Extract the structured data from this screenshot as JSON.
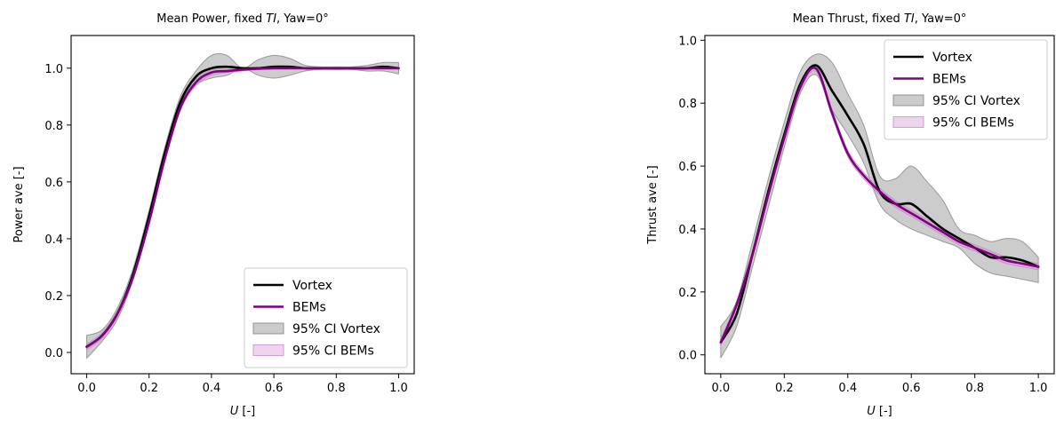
{
  "chart_data": [
    {
      "type": "line",
      "title": "Mean Power, fixed TI, Yaw=0°",
      "title_parts": [
        "Mean Power, fixed ",
        "TI",
        ", Yaw=0°"
      ],
      "xlabel_italic": "U",
      "xlabel_rest": " [-]",
      "ylabel": "Power ave [-]",
      "xlim": [
        -0.05,
        1.05
      ],
      "ylim": [
        -0.075,
        1.115
      ],
      "xticks": [
        0.0,
        0.2,
        0.4,
        0.6,
        0.8,
        1.0
      ],
      "xtick_labels": [
        "0.0",
        "0.2",
        "0.4",
        "0.6",
        "0.8",
        "1.0"
      ],
      "yticks": [
        0.0,
        0.2,
        0.4,
        0.6,
        0.8,
        1.0
      ],
      "ytick_labels": [
        "0.0",
        "0.2",
        "0.4",
        "0.6",
        "0.8",
        "1.0"
      ],
      "legend_position": "lower-right",
      "legend": [
        "Vortex",
        "BEMs",
        "95% CI Vortex",
        "95% CI BEMs"
      ],
      "series": [
        {
          "name": "Vortex",
          "color": "#000000",
          "x": [
            0.0,
            0.05,
            0.1,
            0.15,
            0.2,
            0.25,
            0.3,
            0.35,
            0.4,
            0.45,
            0.5,
            0.55,
            0.6,
            0.65,
            0.7,
            0.75,
            0.8,
            0.85,
            0.9,
            0.95,
            1.0
          ],
          "y": [
            0.02,
            0.06,
            0.14,
            0.28,
            0.48,
            0.7,
            0.88,
            0.97,
            1.0,
            1.005,
            1.0,
            1.0,
            1.005,
            1.005,
            1.0,
            1.0,
            1.0,
            1.0,
            1.0,
            1.005,
            1.0
          ]
        },
        {
          "name": "BEMs",
          "color": "#800080",
          "x": [
            0.0,
            0.05,
            0.1,
            0.15,
            0.2,
            0.25,
            0.3,
            0.35,
            0.4,
            0.45,
            0.5,
            0.55,
            0.6,
            0.65,
            0.7,
            0.75,
            0.8,
            0.85,
            0.9,
            0.95,
            1.0
          ],
          "y": [
            0.02,
            0.06,
            0.14,
            0.27,
            0.46,
            0.68,
            0.86,
            0.95,
            0.985,
            0.99,
            0.995,
            0.998,
            1.0,
            1.0,
            1.0,
            1.0,
            1.0,
            1.0,
            1.0,
            1.0,
            1.0
          ]
        }
      ],
      "bands": [
        {
          "name": "95% CI Vortex",
          "color": "#808080",
          "x": [
            0.0,
            0.05,
            0.1,
            0.15,
            0.2,
            0.25,
            0.3,
            0.35,
            0.4,
            0.45,
            0.5,
            0.55,
            0.6,
            0.65,
            0.7,
            0.75,
            0.8,
            0.85,
            0.9,
            0.95,
            1.0
          ],
          "lower": [
            -0.02,
            0.04,
            0.12,
            0.26,
            0.46,
            0.68,
            0.86,
            0.94,
            0.965,
            0.975,
            1.0,
            0.975,
            0.965,
            0.975,
            0.99,
            0.995,
            0.995,
            0.995,
            0.99,
            0.99,
            0.98
          ],
          "upper": [
            0.06,
            0.08,
            0.16,
            0.3,
            0.5,
            0.72,
            0.9,
            0.99,
            1.045,
            1.045,
            1.0,
            1.03,
            1.045,
            1.035,
            1.01,
            1.005,
            1.005,
            1.005,
            1.01,
            1.02,
            1.02
          ]
        },
        {
          "name": "95% CI BEMs",
          "color": "#cc88cc",
          "x": [
            0.0,
            0.05,
            0.1,
            0.15,
            0.2,
            0.25,
            0.3,
            0.35,
            0.4,
            0.45,
            0.5,
            0.55,
            0.6,
            0.65,
            0.7,
            0.75,
            0.8,
            0.85,
            0.9,
            0.95,
            1.0
          ],
          "lower": [
            0.01,
            0.05,
            0.13,
            0.26,
            0.45,
            0.67,
            0.85,
            0.94,
            0.975,
            0.985,
            0.99,
            0.995,
            0.997,
            0.997,
            0.997,
            0.997,
            0.997,
            0.997,
            0.997,
            0.997,
            0.997
          ],
          "upper": [
            0.03,
            0.07,
            0.15,
            0.28,
            0.47,
            0.69,
            0.87,
            0.96,
            0.995,
            0.995,
            1.0,
            1.001,
            1.003,
            1.003,
            1.003,
            1.003,
            1.003,
            1.003,
            1.003,
            1.003,
            1.003
          ]
        }
      ]
    },
    {
      "type": "line",
      "title": "Mean Thrust, fixed TI, Yaw=0°",
      "title_parts": [
        "Mean Thrust, fixed ",
        "TI",
        ", Yaw=0°"
      ],
      "xlabel_italic": "U",
      "xlabel_rest": " [-]",
      "ylabel": "Thrust ave [-]",
      "xlim": [
        -0.05,
        1.05
      ],
      "ylim": [
        -0.06,
        1.015
      ],
      "xticks": [
        0.0,
        0.2,
        0.4,
        0.6,
        0.8,
        1.0
      ],
      "xtick_labels": [
        "0.0",
        "0.2",
        "0.4",
        "0.6",
        "0.8",
        "1.0"
      ],
      "yticks": [
        0.0,
        0.2,
        0.4,
        0.6,
        0.8,
        1.0
      ],
      "ytick_labels": [
        "0.0",
        "0.2",
        "0.4",
        "0.6",
        "0.8",
        "1.0"
      ],
      "legend_position": "upper-right",
      "legend": [
        "Vortex",
        "BEMs",
        "95% CI Vortex",
        "95% CI BEMs"
      ],
      "series": [
        {
          "name": "Vortex",
          "color": "#000000",
          "x": [
            0.0,
            0.05,
            0.1,
            0.15,
            0.2,
            0.25,
            0.3,
            0.35,
            0.4,
            0.45,
            0.5,
            0.55,
            0.6,
            0.65,
            0.7,
            0.75,
            0.8,
            0.85,
            0.9,
            0.95,
            1.0
          ],
          "y": [
            0.04,
            0.13,
            0.32,
            0.52,
            0.7,
            0.86,
            0.92,
            0.84,
            0.76,
            0.67,
            0.52,
            0.48,
            0.48,
            0.44,
            0.4,
            0.37,
            0.34,
            0.31,
            0.31,
            0.3,
            0.28
          ]
        },
        {
          "name": "BEMs",
          "color": "#800080",
          "x": [
            0.0,
            0.05,
            0.1,
            0.15,
            0.2,
            0.25,
            0.3,
            0.35,
            0.4,
            0.45,
            0.5,
            0.55,
            0.6,
            0.65,
            0.7,
            0.75,
            0.8,
            0.85,
            0.9,
            0.95,
            1.0
          ],
          "y": [
            0.04,
            0.16,
            0.32,
            0.51,
            0.69,
            0.85,
            0.91,
            0.77,
            0.64,
            0.57,
            0.52,
            0.48,
            0.45,
            0.42,
            0.39,
            0.36,
            0.34,
            0.32,
            0.3,
            0.29,
            0.28
          ]
        }
      ],
      "bands": [
        {
          "name": "95% CI Vortex",
          "color": "#808080",
          "x": [
            0.0,
            0.05,
            0.1,
            0.15,
            0.2,
            0.25,
            0.3,
            0.35,
            0.4,
            0.45,
            0.5,
            0.55,
            0.6,
            0.65,
            0.7,
            0.75,
            0.8,
            0.85,
            0.9,
            0.95,
            1.0
          ],
          "lower": [
            -0.01,
            0.09,
            0.28,
            0.47,
            0.66,
            0.83,
            0.89,
            0.78,
            0.7,
            0.61,
            0.48,
            0.43,
            0.4,
            0.38,
            0.36,
            0.34,
            0.29,
            0.26,
            0.25,
            0.24,
            0.23
          ],
          "upper": [
            0.09,
            0.17,
            0.36,
            0.56,
            0.74,
            0.9,
            0.955,
            0.93,
            0.83,
            0.73,
            0.57,
            0.56,
            0.6,
            0.55,
            0.49,
            0.4,
            0.38,
            0.36,
            0.37,
            0.36,
            0.31
          ]
        },
        {
          "name": "95% CI BEMs",
          "color": "#cc88cc",
          "x": [
            0.0,
            0.05,
            0.1,
            0.15,
            0.2,
            0.25,
            0.3,
            0.35,
            0.4,
            0.45,
            0.5,
            0.55,
            0.6,
            0.65,
            0.7,
            0.75,
            0.8,
            0.85,
            0.9,
            0.95,
            1.0
          ],
          "lower": [
            0.03,
            0.15,
            0.31,
            0.5,
            0.68,
            0.84,
            0.9,
            0.76,
            0.63,
            0.56,
            0.51,
            0.47,
            0.44,
            0.41,
            0.38,
            0.35,
            0.33,
            0.31,
            0.29,
            0.28,
            0.27
          ],
          "upper": [
            0.05,
            0.17,
            0.33,
            0.52,
            0.7,
            0.86,
            0.92,
            0.78,
            0.65,
            0.58,
            0.53,
            0.49,
            0.46,
            0.43,
            0.4,
            0.37,
            0.35,
            0.33,
            0.31,
            0.3,
            0.29
          ]
        }
      ]
    }
  ]
}
